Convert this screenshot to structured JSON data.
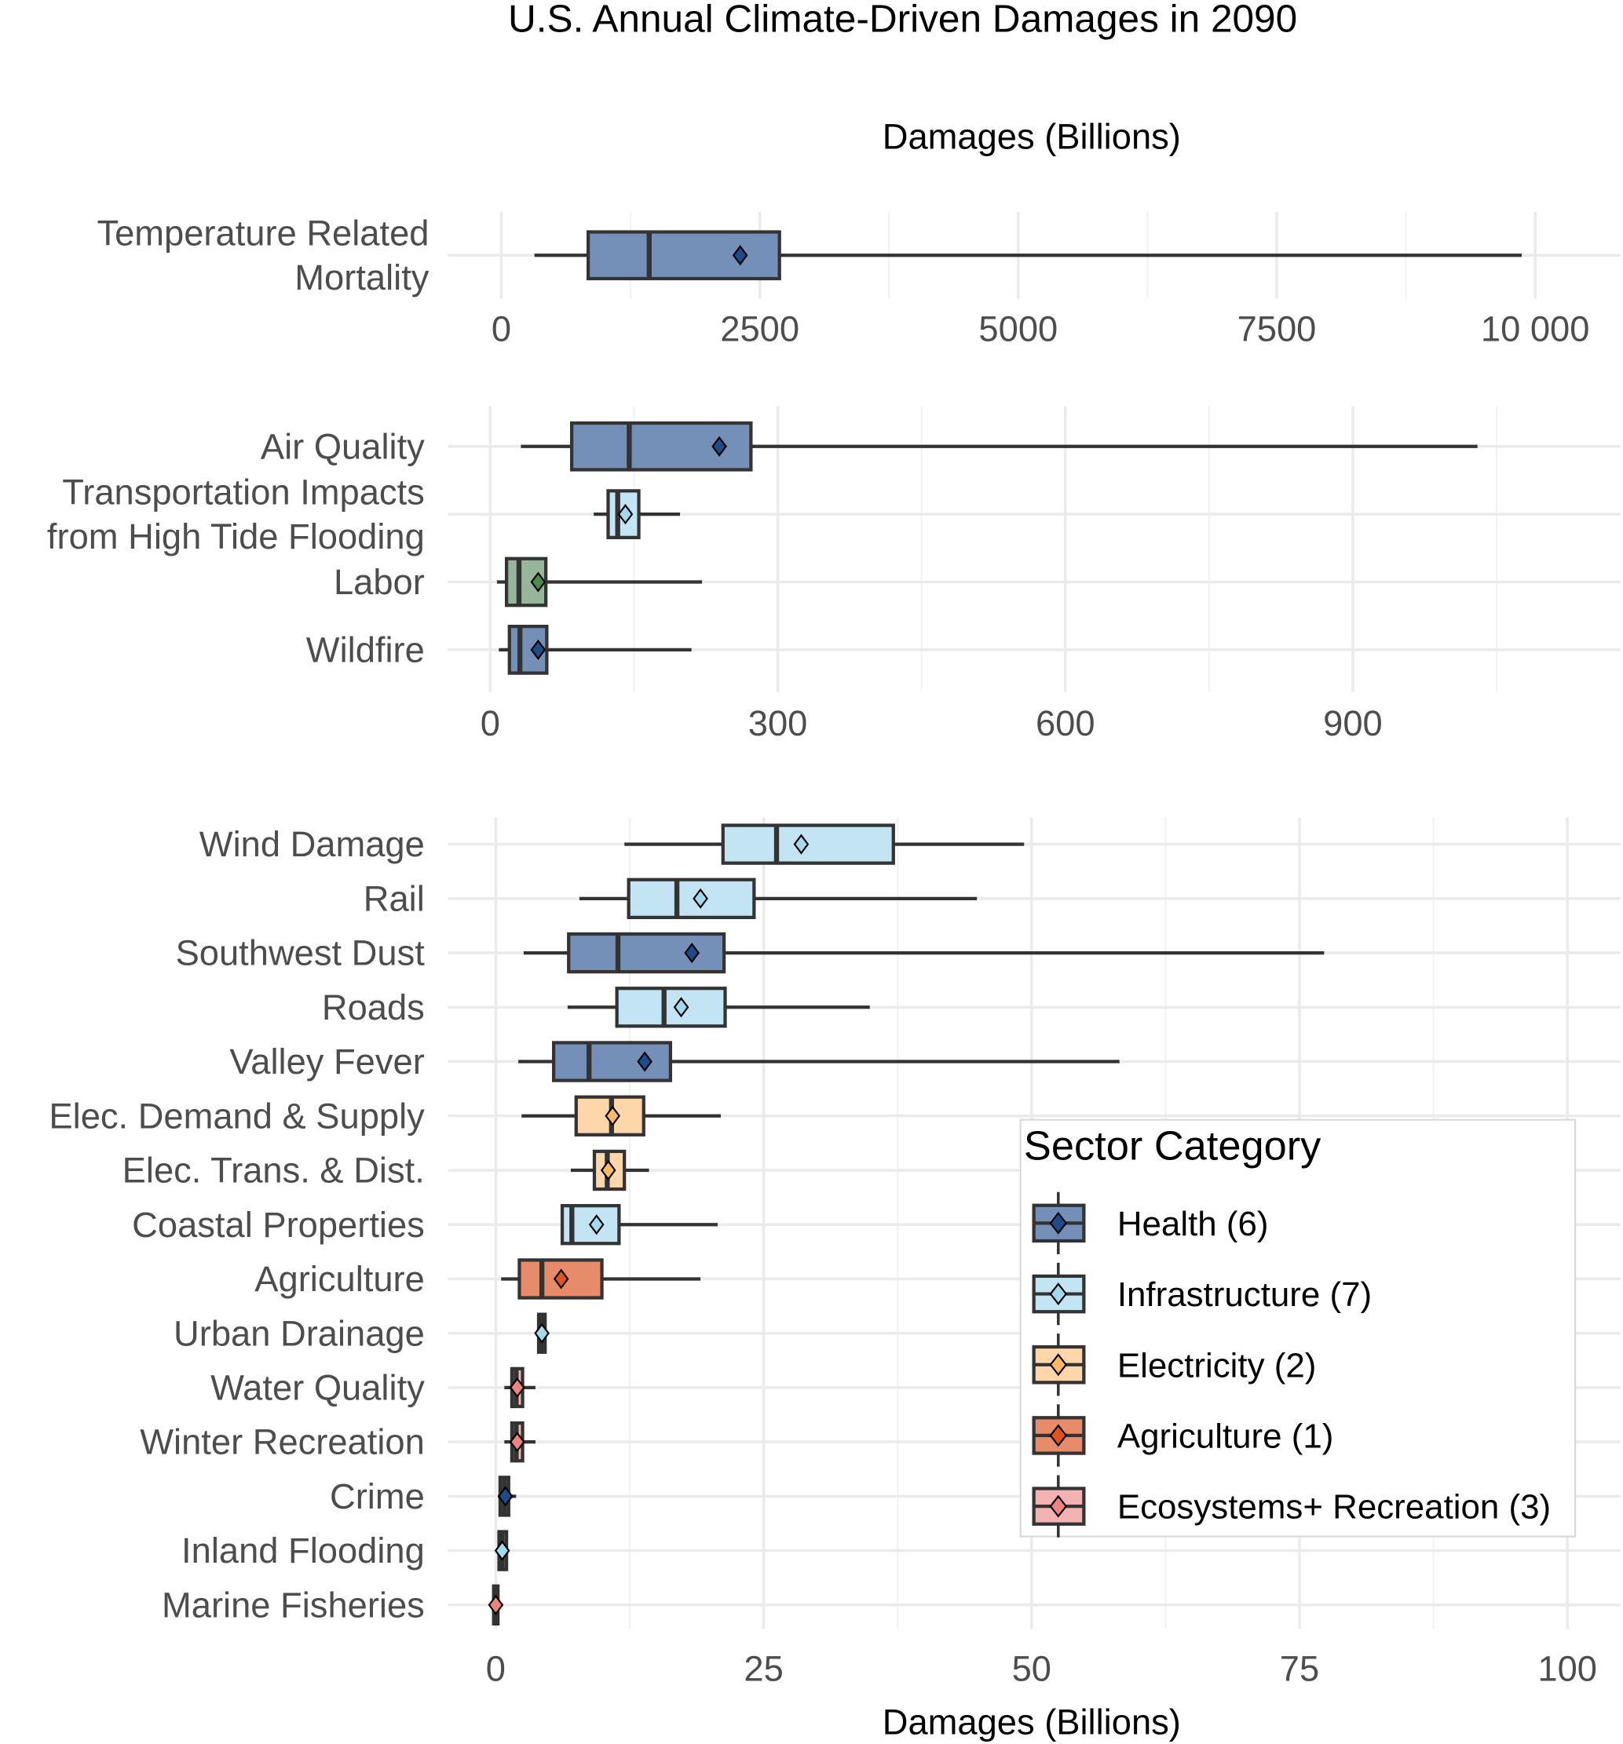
{
  "title": "U.S. Annual Climate-Driven Damages in 2090",
  "colors": {
    "Health": {
      "fill": "#7590b8",
      "mean": "#1f4b8a"
    },
    "Infrastructure": {
      "fill": "#c2e4f3",
      "mean": "#a3d8ee"
    },
    "Electricity": {
      "fill": "#fdd6aa",
      "mean": "#fbb865"
    },
    "Agriculture": {
      "fill": "#e68c6a",
      "mean": "#e0541e"
    },
    "Ecosystems": {
      "fill": "#f4b2b2",
      "mean": "#f08282"
    },
    "Labor": {
      "fill": "#97b59a",
      "mean": "#4c8a4e"
    },
    "outline": "#333333"
  },
  "chart_data": [
    {
      "type": "boxplot",
      "orientation": "horizontal",
      "xlabel_top": "Damages (Billions)",
      "xlim": [
        0,
        10000
      ],
      "xticks": [
        0,
        2500,
        5000,
        7500,
        10000
      ],
      "xtick_labels": [
        "0",
        "2500",
        "5000",
        "7500",
        "10 000"
      ],
      "grid": true,
      "boxes": [
        {
          "label": "Temperature Related\nMortality",
          "category": "Health",
          "min": 320,
          "q1": 840,
          "median": 1430,
          "mean": 2310,
          "q3": 2690,
          "max": 9870
        }
      ]
    },
    {
      "type": "boxplot",
      "orientation": "horizontal",
      "xlim": [
        0,
        1100
      ],
      "xticks": [
        0,
        300,
        600,
        900
      ],
      "xtick_labels": [
        "0",
        "300",
        "600",
        "900"
      ],
      "grid": true,
      "boxes": [
        {
          "label": "Air Quality",
          "category": "Health",
          "min": 32,
          "q1": 85,
          "median": 145,
          "mean": 239,
          "q3": 272,
          "max": 1030
        },
        {
          "label": "Transportation Impacts\nfrom High Tide Flooding",
          "category": "Infrastructure",
          "min": 108,
          "q1": 123,
          "median": 133,
          "mean": 141,
          "q3": 155,
          "max": 198
        },
        {
          "label": "Labor",
          "category": "Labor",
          "min": 7,
          "q1": 17,
          "median": 30,
          "mean": 50,
          "q3": 58,
          "max": 221
        },
        {
          "label": "Wildfire",
          "category": "Health",
          "min": 9,
          "q1": 20,
          "median": 31,
          "mean": 50,
          "q3": 59,
          "max": 210
        }
      ]
    },
    {
      "type": "boxplot",
      "orientation": "horizontal",
      "xlabel": "Damages (Billions)",
      "xlim": [
        0,
        100
      ],
      "xticks": [
        0,
        25,
        50,
        75,
        100
      ],
      "xtick_labels": [
        "0",
        "25",
        "50",
        "75",
        "100"
      ],
      "grid": true,
      "boxes": [
        {
          "label": "Wind Damage",
          "category": "Infrastructure",
          "min": 12.0,
          "q1": 21.2,
          "median": 26.2,
          "mean": 28.5,
          "q3": 37.1,
          "max": 49.3
        },
        {
          "label": "Rail",
          "category": "Infrastructure",
          "min": 7.8,
          "q1": 12.4,
          "median": 16.9,
          "mean": 19.1,
          "q3": 24.1,
          "max": 44.9
        },
        {
          "label": "Southwest Dust",
          "category": "Health",
          "min": 2.6,
          "q1": 6.8,
          "median": 11.4,
          "mean": 18.3,
          "q3": 21.3,
          "max": 77.3
        },
        {
          "label": "Roads",
          "category": "Infrastructure",
          "min": 6.7,
          "q1": 11.3,
          "median": 15.7,
          "mean": 17.3,
          "q3": 21.4,
          "max": 34.9
        },
        {
          "label": "Valley Fever",
          "category": "Health",
          "min": 2.1,
          "q1": 5.4,
          "median": 8.7,
          "mean": 13.9,
          "q3": 16.3,
          "max": 58.2
        },
        {
          "label": "Elec. Demand & Supply",
          "category": "Electricity",
          "min": 2.4,
          "q1": 7.5,
          "median": 10.8,
          "mean": 10.9,
          "q3": 13.8,
          "max": 21.0
        },
        {
          "label": "Elec. Trans. & Dist.",
          "category": "Electricity",
          "min": 7.0,
          "q1": 9.2,
          "median": 10.4,
          "mean": 10.5,
          "q3": 12.0,
          "max": 14.3
        },
        {
          "label": "Coastal Properties",
          "category": "Infrastructure",
          "min": 6.1,
          "q1": 6.2,
          "median": 7.1,
          "mean": 9.4,
          "q3": 11.5,
          "max": 20.7
        },
        {
          "label": "Agriculture",
          "category": "Agriculture",
          "min": 0.5,
          "q1": 2.2,
          "median": 4.3,
          "mean": 6.1,
          "q3": 9.9,
          "max": 19.1
        },
        {
          "label": "Urban Drainage",
          "category": "Infrastructure",
          "min": 4.0,
          "q1": 4.0,
          "median": 4.3,
          "mean": 4.3,
          "q3": 4.6,
          "max": 4.6
        },
        {
          "label": "Water Quality",
          "category": "Ecosystems",
          "min": 0.8,
          "q1": 1.5,
          "median": 1.9,
          "mean": 2.0,
          "q3": 2.5,
          "max": 3.7
        },
        {
          "label": "Winter Recreation",
          "category": "Ecosystems",
          "min": 0.8,
          "q1": 1.5,
          "median": 1.9,
          "mean": 2.0,
          "q3": 2.5,
          "max": 3.7
        },
        {
          "label": "Crime",
          "category": "Health",
          "min": 0.2,
          "q1": 0.4,
          "median": 0.8,
          "mean": 0.9,
          "q3": 1.2,
          "max": 1.9
        },
        {
          "label": "Inland Flooding",
          "category": "Infrastructure",
          "min": 0.2,
          "q1": 0.3,
          "median": 0.6,
          "mean": 0.6,
          "q3": 1.0,
          "max": 1.1
        },
        {
          "label": "Marine Fisheries",
          "category": "Ecosystems",
          "min": -0.3,
          "q1": -0.2,
          "median": 0.0,
          "mean": 0.0,
          "q3": 0.2,
          "max": 0.2
        }
      ]
    }
  ],
  "legend": {
    "title": "Sector Category",
    "placement": "bottom-right",
    "items": [
      {
        "label": "Health (6)",
        "category": "Health"
      },
      {
        "label": "Infrastructure (7)",
        "category": "Infrastructure"
      },
      {
        "label": "Electricity (2)",
        "category": "Electricity"
      },
      {
        "label": "Agriculture (1)",
        "category": "Agriculture"
      },
      {
        "label": "Ecosystems+ Recreation (3)",
        "category": "Ecosystems"
      }
    ]
  }
}
